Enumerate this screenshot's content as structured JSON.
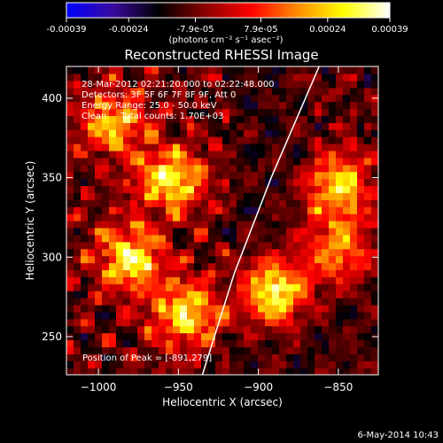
{
  "colorbar": {
    "tick_labels": [
      "-0.00039",
      "-0.00024",
      "-7.9e-05",
      "7.9e-05",
      "0.00024",
      "0.00039"
    ],
    "tick_values": [
      -0.00039,
      -0.00024,
      -7.9e-05,
      7.9e-05,
      0.00024,
      0.00039
    ],
    "range": [
      -0.00039,
      0.00039
    ],
    "units_label": "(photons cm⁻² s⁻¹ asec⁻²)",
    "colormap": [
      "#0000ff",
      "#3a0aa0",
      "#000000",
      "#8b0000",
      "#ff0000",
      "#ff8c00",
      "#ffff00",
      "#ffffff"
    ]
  },
  "chart_data": {
    "type": "heatmap",
    "title": "Reconstructed RHESSI Image",
    "xlabel": "Heliocentric X (arcsec)",
    "ylabel": "Heliocentric Y (arcsec)",
    "xlim": [
      -1020,
      -825
    ],
    "ylim": [
      226,
      420
    ],
    "x_ticks": [
      -1000,
      -950,
      -900,
      -850
    ],
    "x_tick_labels": [
      "−1000",
      "−950",
      "−900",
      "−850"
    ],
    "y_ticks": [
      250,
      300,
      350,
      400
    ],
    "y_tick_labels": [
      "250",
      "300",
      "350",
      "400"
    ],
    "hot_spots": [
      {
        "x": -890,
        "y": 279,
        "peak": 0.00039
      },
      {
        "x": -980,
        "y": 300,
        "peak": 0.0003
      },
      {
        "x": -955,
        "y": 350,
        "peak": 0.0003
      },
      {
        "x": -990,
        "y": 385,
        "peak": 0.00022
      },
      {
        "x": -945,
        "y": 265,
        "peak": 0.00028
      },
      {
        "x": -850,
        "y": 345,
        "peak": 0.00026
      },
      {
        "x": -850,
        "y": 305,
        "peak": 0.00022
      }
    ],
    "limb_curve": [
      [
        -935,
        226
      ],
      [
        -915,
        290
      ],
      [
        -892,
        350
      ],
      [
        -862,
        420
      ]
    ],
    "annotations": [
      "28-Mar-2012 02:21:20.000 to 02:22:48.000",
      "Detectors: 3F 5F 6F 7F 8F 9F, Att 0",
      "Energy Range: 25.0 - 50.0 keV",
      "Clean     Total counts: 1.70E+03"
    ],
    "peak_label": "Position of Peak = [-891,279]"
  },
  "footer": {
    "date": "6-May-2014 10:43"
  }
}
